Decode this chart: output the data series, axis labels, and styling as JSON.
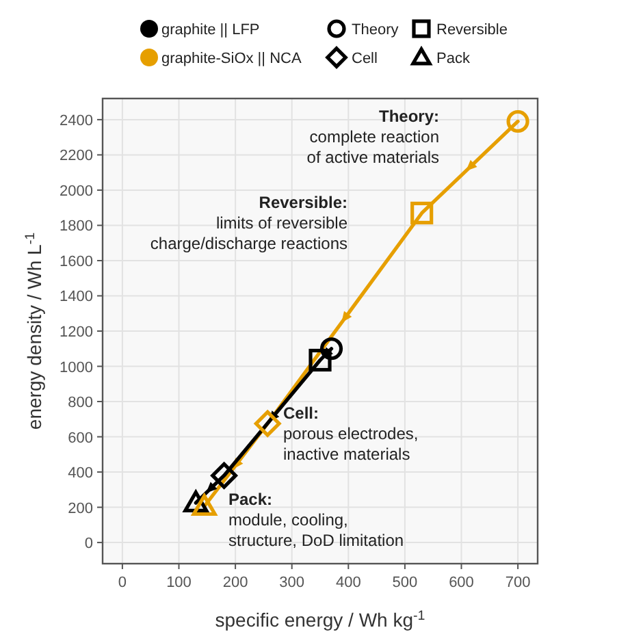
{
  "chart_data": {
    "type": "line",
    "xlabel": "specific energy / Wh kg$^{-1}$",
    "ylabel": "energy density / Wh L$^{-1}$",
    "xlim": [
      -35,
      735
    ],
    "ylim": [
      -120,
      2520
    ],
    "xticks": [
      0,
      100,
      200,
      300,
      400,
      500,
      600,
      700
    ],
    "yticks": [
      0,
      200,
      400,
      600,
      800,
      1000,
      1200,
      1400,
      1600,
      1800,
      2000,
      2200,
      2400
    ],
    "grid": true,
    "legend": "top",
    "series": [
      {
        "name": "graphite || LFP",
        "color": "#000000",
        "marker": "none",
        "x": [
          370,
          350,
          180,
          130
        ],
        "values": [
          1100,
          1035,
          380,
          225
        ]
      },
      {
        "name": "graphite-SiOx || NCA",
        "color": "#e69f00",
        "marker": "none",
        "x": [
          700,
          530,
          257,
          145
        ],
        "values": [
          2390,
          1870,
          675,
          205
        ]
      },
      {
        "name": "Theory",
        "type": "scatter",
        "marker": "circle",
        "x": [
          370,
          700
        ],
        "values": [
          1100,
          2390
        ],
        "colors": [
          "#000000",
          "#e69f00"
        ]
      },
      {
        "name": "Reversible",
        "type": "scatter",
        "marker": "square",
        "x": [
          350,
          530
        ],
        "values": [
          1035,
          1870
        ],
        "colors": [
          "#000000",
          "#e69f00"
        ]
      },
      {
        "name": "Cell",
        "type": "scatter",
        "marker": "diamond",
        "x": [
          180,
          257
        ],
        "values": [
          380,
          675
        ],
        "colors": [
          "#000000",
          "#e69f00"
        ]
      },
      {
        "name": "Pack",
        "type": "scatter",
        "marker": "triangle",
        "x": [
          130,
          145
        ],
        "values": [
          225,
          205
        ],
        "colors": [
          "#000000",
          "#e69f00"
        ]
      }
    ],
    "annotations": [
      "Theory:\ncomplete reaction\nof active materials",
      "Reversible:\nlimits of reversible\ncharge/discharge reactions",
      "Cell:\nporous electrodes,\ninactive materials",
      "Pack:\nmodule, cooling,\nstructure, DoD limitation"
    ]
  }
}
